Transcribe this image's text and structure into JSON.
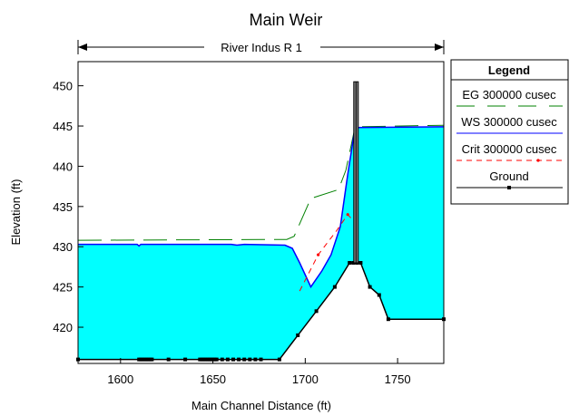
{
  "chart_data": {
    "type": "line",
    "title": "Main Weir",
    "subtitle": "River Indus R 1",
    "xlabel": "Main Channel Distance (ft)",
    "ylabel": "Elevation (ft)",
    "xlim": [
      1577,
      1775
    ],
    "ylim": [
      415.5,
      453
    ],
    "x_ticks": [
      1600,
      1650,
      1700,
      1750
    ],
    "y_ticks": [
      420,
      425,
      430,
      435,
      440,
      445,
      450
    ],
    "grid": false,
    "legend_position": "right",
    "legend_title": "Legend",
    "colors": {
      "water": "#00ffff",
      "eg": "#008000",
      "ws": "#0000ff",
      "crit": "#ff0000",
      "ground": "#000000"
    },
    "series": [
      {
        "name": "EG  300000 cusec",
        "style": "long-dash",
        "points": [
          [
            1577,
            430.8
          ],
          [
            1690,
            430.9
          ],
          [
            1694,
            431.3
          ],
          [
            1703,
            436.0
          ],
          [
            1718,
            437.1
          ],
          [
            1722,
            439.5
          ],
          [
            1727,
            444.9
          ],
          [
            1775,
            445.1
          ]
        ]
      },
      {
        "name": "WS  300000 cusec",
        "style": "solid",
        "points": [
          [
            1577,
            430.3
          ],
          [
            1609,
            430.3
          ],
          [
            1610,
            430.1
          ],
          [
            1611,
            430.3
          ],
          [
            1660,
            430.3
          ],
          [
            1663,
            430.2
          ],
          [
            1667,
            430.3
          ],
          [
            1689,
            430.2
          ],
          [
            1693,
            429.8
          ],
          [
            1697,
            428.0
          ],
          [
            1703,
            425.0
          ],
          [
            1709,
            427.0
          ],
          [
            1714,
            429.0
          ],
          [
            1719,
            432.5
          ],
          [
            1723,
            439.0
          ],
          [
            1727,
            444.8
          ],
          [
            1775,
            444.9
          ]
        ]
      },
      {
        "name": "Crit  300000 cusec",
        "style": "dash",
        "points": [
          [
            1697,
            424.5
          ],
          [
            1707,
            429.0
          ],
          [
            1717,
            432.0
          ],
          [
            1723,
            434.0
          ],
          [
            1725,
            433.5
          ],
          [
            1728,
            433.9
          ]
        ]
      },
      {
        "name": "Ground",
        "style": "solid-marker",
        "points": [
          [
            1577,
            416.0
          ],
          [
            1610,
            416.0
          ],
          [
            1611,
            416.0
          ],
          [
            1612,
            416.0
          ],
          [
            1613,
            416.0
          ],
          [
            1614,
            416.0
          ],
          [
            1615,
            416.0
          ],
          [
            1616,
            416.0
          ],
          [
            1617,
            416.0
          ],
          [
            1626,
            416.0
          ],
          [
            1635,
            416.0
          ],
          [
            1643,
            416.0
          ],
          [
            1644,
            416.0
          ],
          [
            1645,
            416.0
          ],
          [
            1646,
            416.0
          ],
          [
            1647,
            416.0
          ],
          [
            1648,
            416.0
          ],
          [
            1649,
            416.0
          ],
          [
            1650,
            416.0
          ],
          [
            1651,
            416.0
          ],
          [
            1652,
            416.0
          ],
          [
            1655,
            416.0
          ],
          [
            1658,
            416.0
          ],
          [
            1661,
            416.0
          ],
          [
            1664,
            416.0
          ],
          [
            1667,
            416.0
          ],
          [
            1670,
            416.0
          ],
          [
            1673,
            416.0
          ],
          [
            1676,
            416.0
          ],
          [
            1686,
            416.0
          ],
          [
            1696,
            419.0
          ],
          [
            1706,
            422.0
          ],
          [
            1716,
            425.0
          ],
          [
            1724,
            428.0
          ],
          [
            1726,
            428.0
          ],
          [
            1728,
            428.0
          ],
          [
            1730,
            428.0
          ],
          [
            1735,
            425.0
          ],
          [
            1740,
            424.0
          ],
          [
            1745,
            421.0
          ],
          [
            1775,
            421.0
          ]
        ]
      }
    ],
    "weir": {
      "x": 1727.5,
      "top": 450.5,
      "bottom": 428.0
    }
  }
}
